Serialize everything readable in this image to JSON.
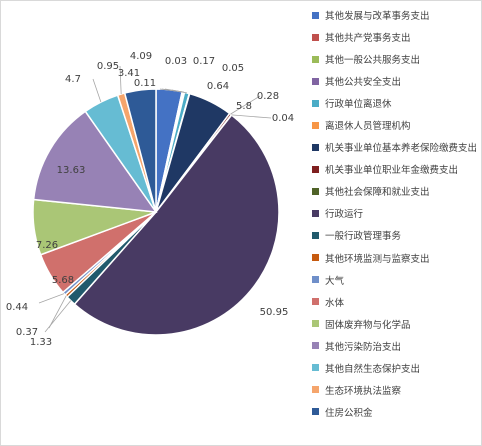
{
  "chart_data": {
    "type": "pie",
    "title": "",
    "legend_position": "right",
    "start": "top",
    "direction": "clockwise",
    "labels": [
      "其他发展与改革事务支出",
      "其他共产党事务支出",
      "其他一般公共服务支出",
      "其他公共安全支出",
      "行政单位离退休",
      "离退休人员管理机构",
      "机关事业单位基本养老保险缴费支出",
      "机关事业单位职业年金缴费支出",
      "其他社会保障和就业支出",
      "行政运行",
      "一般行政管理事务",
      "其他环境监测与监察支出",
      "大气",
      "水体",
      "固体废弃物与化学品",
      "其他污染防治支出",
      "其他自然生态保护支出",
      "生态环境执法监察",
      "住房公积金"
    ],
    "values": [
      3.41,
      0.11,
      0.03,
      0.17,
      0.64,
      0.05,
      5.8,
      0.28,
      0.04,
      50.95,
      1.33,
      0.37,
      0.44,
      5.68,
      7.26,
      13.63,
      4.7,
      0.95,
      4.09
    ],
    "value_labels": [
      "3.41",
      "0.11",
      "0.03",
      "0.17",
      "0.64",
      "0.05",
      "5.8",
      "0.28",
      "0.04",
      "50.95",
      "1.33",
      "0.37",
      "0.44",
      "5.68",
      "7.26",
      "13.63",
      "4.7",
      "0.95",
      "4.09"
    ],
    "colors": [
      "#4472c4",
      "#c0504d",
      "#9bbb59",
      "#8064a2",
      "#4bacc6",
      "#f79646",
      "#1f3864",
      "#7f1f1f",
      "#4f6228",
      "#483a63",
      "#215a6c",
      "#c65a0f",
      "#6f8fc9",
      "#d0706c",
      "#aac676",
      "#9782b5",
      "#66bcd3",
      "#f5a56c",
      "#2e5a97"
    ]
  }
}
